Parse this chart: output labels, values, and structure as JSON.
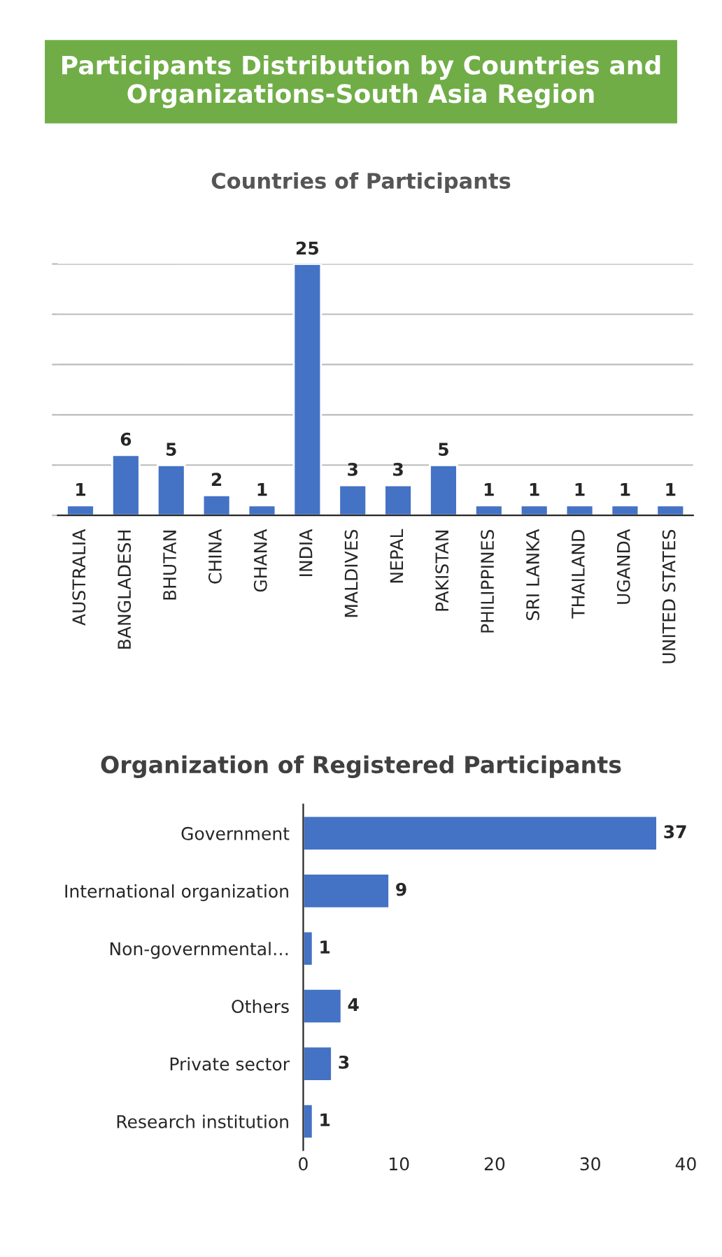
{
  "chart_data": [
    {
      "type": "bar",
      "title": "Participants Distribution by Countries and Organizations-South Asia Region",
      "subtitle": "Countries of Participants",
      "categories": [
        "AUSTRALIA",
        "BANGLADESH",
        "BHUTAN",
        "CHINA",
        "GHANA",
        "INDIA",
        "MALDIVES",
        "NEPAL",
        "PAKISTAN",
        "PHILIPPINES",
        "SRI LANKA",
        "THAILAND",
        "UGANDA",
        "UNITED STATES"
      ],
      "values": [
        1,
        6,
        5,
        2,
        1,
        25,
        3,
        3,
        5,
        1,
        1,
        1,
        1,
        1
      ],
      "color": "#4472c4",
      "ylim": [
        0,
        25
      ],
      "yticks": [
        {
          "value": 0,
          "label": null
        },
        {
          "value": 5,
          "label": null
        },
        {
          "value": 10,
          "label": null
        },
        {
          "value": 15,
          "label": null
        },
        {
          "value": 20,
          "label": null
        },
        {
          "value": 25,
          "label": null
        }
      ],
      "tick_labels": "x",
      "grid": "y",
      "data_labels": true
    },
    {
      "type": "bar",
      "orientation": "horizontal",
      "title": "Organization of Registered Participants",
      "categories": [
        "Government",
        "International organization",
        "Non-governmental…",
        "Others",
        "Private sector",
        "Research institution"
      ],
      "values": [
        37,
        9,
        1,
        4,
        3,
        1
      ],
      "color": "#4472c4",
      "xlim": [
        0,
        40
      ],
      "xticks": [
        0,
        10,
        20,
        30,
        40
      ],
      "data_labels": true
    }
  ]
}
